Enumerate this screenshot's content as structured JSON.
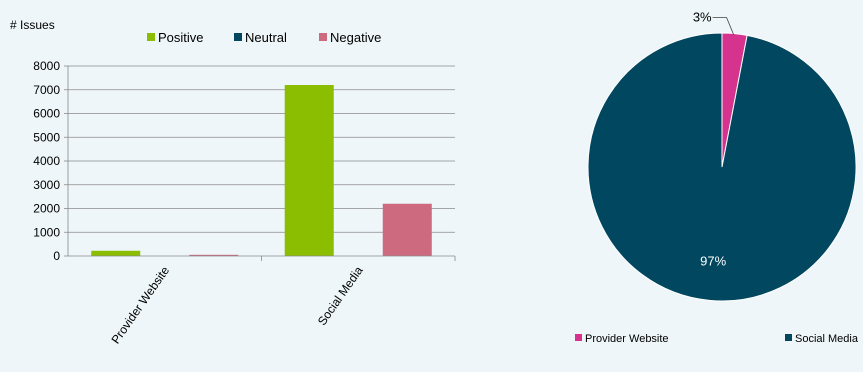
{
  "chart_data": [
    {
      "type": "bar",
      "ylabel": "# Issues",
      "ylim": [
        0,
        8000
      ],
      "yticks": [
        0,
        1000,
        2000,
        3000,
        4000,
        5000,
        6000,
        7000,
        8000
      ],
      "categories": [
        "Provider Website",
        "Social Media"
      ],
      "series": [
        {
          "name": "Positive",
          "color": "#8bbd00",
          "values": [
            220,
            7200
          ]
        },
        {
          "name": "Neutral",
          "color": "#00475f",
          "values": [
            0,
            0
          ]
        },
        {
          "name": "Negative",
          "color": "#cd6a80",
          "values": [
            50,
            2200
          ]
        }
      ],
      "grid": true,
      "legend_position": "top"
    },
    {
      "type": "pie",
      "slices": [
        {
          "label": "Provider Website",
          "value": 3,
          "display": "3%",
          "color": "#d6338f"
        },
        {
          "label": "Social Media",
          "value": 97,
          "display": "97%",
          "color": "#00475f"
        }
      ],
      "legend_position": "bottom"
    }
  ]
}
